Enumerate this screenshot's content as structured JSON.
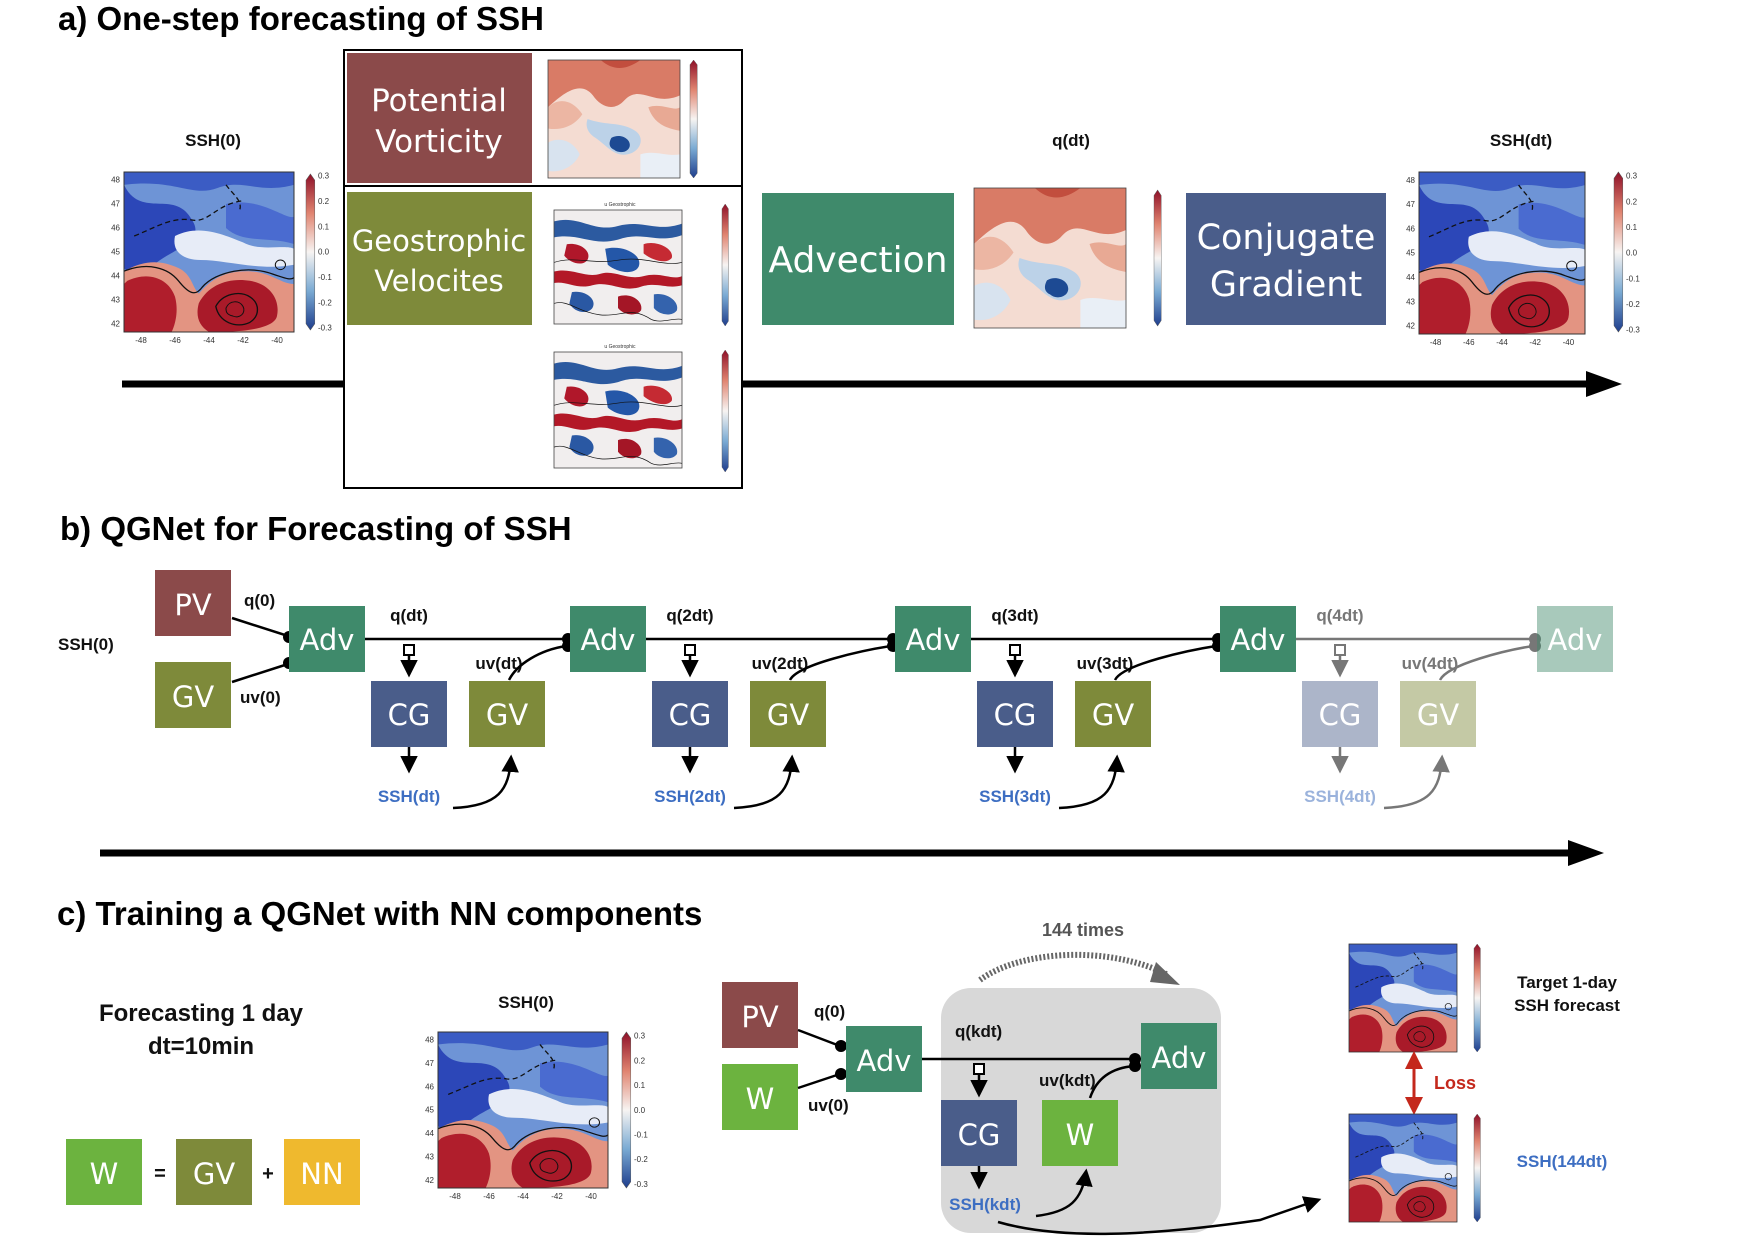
{
  "panel_a": {
    "title": "a) One-step forecasting of SSH",
    "ssh0_label": "SSH(0)",
    "qdt_label": "q(dt)",
    "sshdt_label": "SSH(dt)",
    "potential_vorticity": [
      "Potential",
      "Vorticity"
    ],
    "geostrophic_velocities": [
      "Geostrophic",
      "Velocites"
    ],
    "advection": "Advection",
    "conjugate_gradient": [
      "Conjugate",
      "Gradient"
    ],
    "map_x_ticks": [
      "-48",
      "-46",
      "-44",
      "-42",
      "-40"
    ],
    "map_y_ticks": [
      "48",
      "47",
      "46",
      "45",
      "44",
      "43",
      "42"
    ],
    "ssh_colorbar_ticks": [
      "0.3",
      "0.2",
      "0.1",
      "0.0",
      "-0.1",
      "-0.2",
      "-0.3"
    ],
    "geo_panel_title": "u Geostrophic"
  },
  "panel_b": {
    "title": "b) QGNet for Forecasting of SSH",
    "ssh0": "SSH(0)",
    "pv": "PV",
    "gv": "GV",
    "q0": "q(0)",
    "uv0": "uv(0)",
    "adv": "Adv",
    "cg": "CG",
    "steps": [
      {
        "q": "q(dt)",
        "uv": "uv(dt)",
        "ssh": "SSH(dt)"
      },
      {
        "q": "q(2dt)",
        "uv": "uv(2dt)",
        "ssh": "SSH(2dt)"
      },
      {
        "q": "q(3dt)",
        "uv": "uv(3dt)",
        "ssh": "SSH(3dt)"
      },
      {
        "q": "q(4dt)",
        "uv": "uv(4dt)",
        "ssh": "SSH(4dt)"
      }
    ]
  },
  "panel_c": {
    "title": "c) Training a QGNet with NN components",
    "forecast_line1": "Forecasting 1 day",
    "forecast_line2": "dt=10min",
    "w": "W",
    "equals": "=",
    "gv": "GV",
    "plus": "+",
    "nn": "NN",
    "ssh0": "SSH(0)",
    "pv": "PV",
    "q0": "q(0)",
    "uv0": "uv(0)",
    "adv": "Adv",
    "qkdt": "q(kdt)",
    "uvkdt": "uv(kdt)",
    "cg": "CG",
    "sshkdt": "SSH(kdt)",
    "times": "144 times",
    "target_line1": "Target 1-day",
    "target_line2": "SSH forecast",
    "loss": "Loss",
    "ssh144": "SSH(144dt)"
  },
  "colors": {
    "pv": "#8b4a4a",
    "gv": "#7e8a3a",
    "adv": "#3f8a6b",
    "cg": "#4a5d8a",
    "w": "#6cb33f",
    "nn": "#efb92e",
    "ssh_label": "#3d6ec2",
    "loss": "#c4281c"
  }
}
